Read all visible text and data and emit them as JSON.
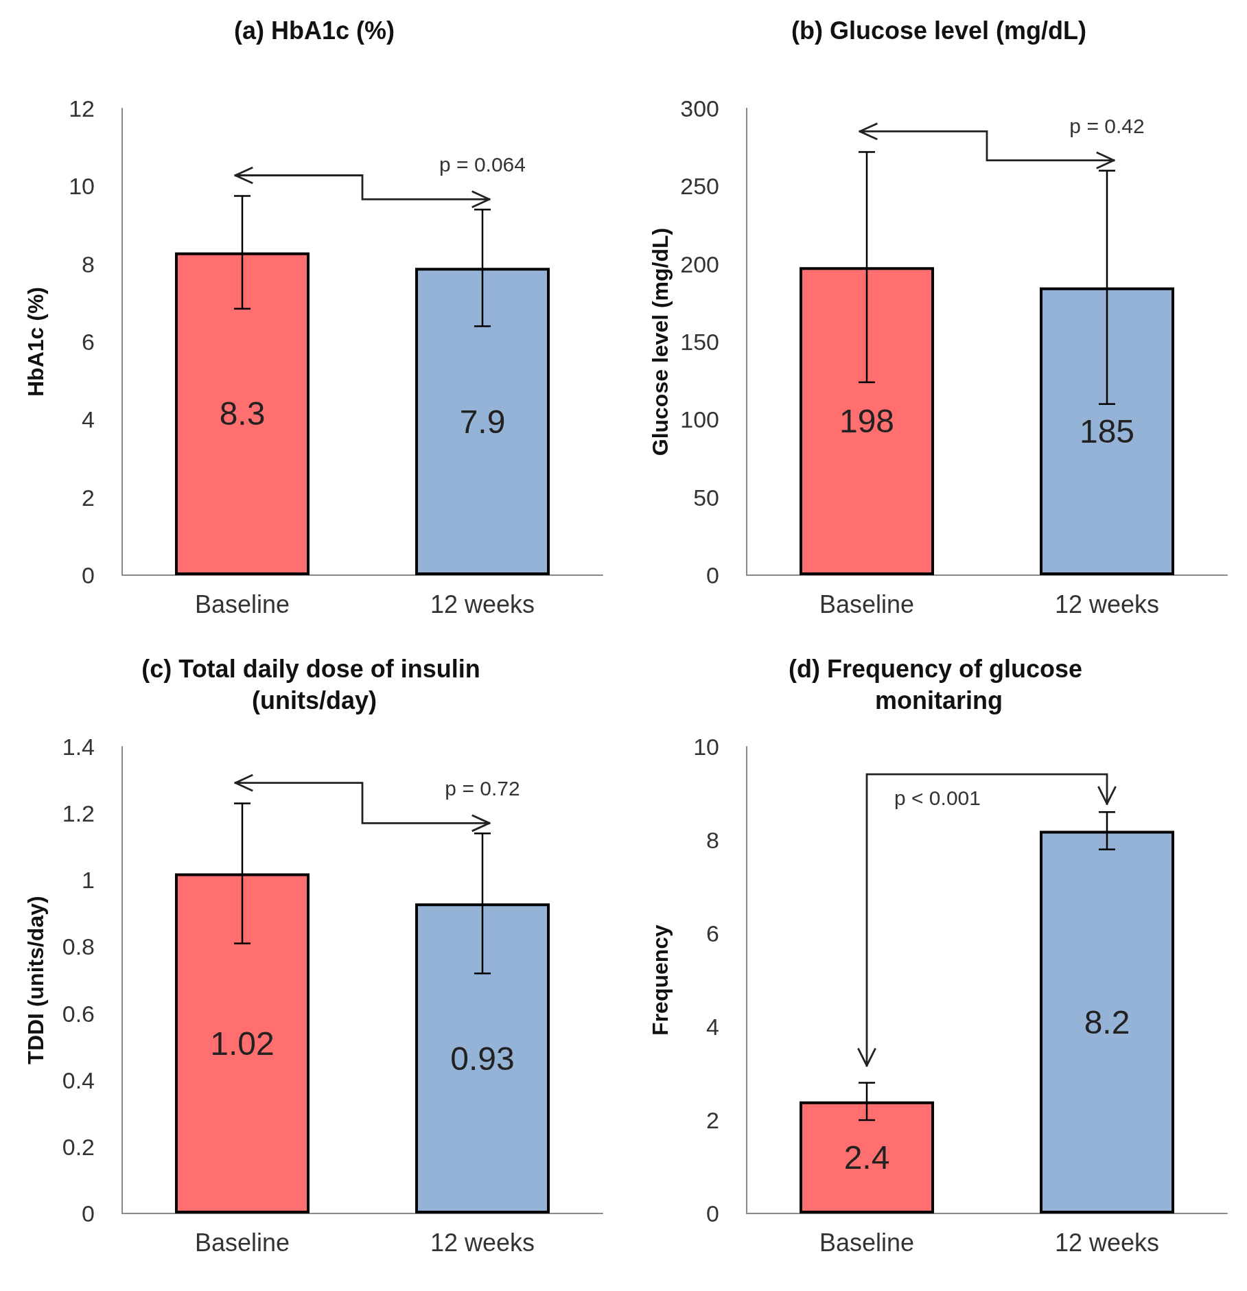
{
  "chart_data": [
    {
      "type": "bar",
      "title": "(a) HbA1c (%)",
      "ylabel": "HbA1c (%)",
      "categories": [
        "Baseline",
        "12 weeks"
      ],
      "values": [
        8.3,
        7.9
      ],
      "colors": [
        "#ff6f6f",
        "#95b3d7"
      ],
      "errors": [
        1.45,
        1.5
      ],
      "ylim": [
        0,
        12
      ],
      "yticks": [
        0,
        2,
        4,
        6,
        8,
        10,
        12
      ],
      "data_labels": true,
      "grid": false,
      "annotations": [
        "p = 0.064"
      ]
    },
    {
      "type": "bar",
      "title": "(b) Glucose level (mg/dL)",
      "ylabel": "Glucose level (mg/dL)",
      "categories": [
        "Baseline",
        "12 weeks"
      ],
      "values": [
        198,
        185
      ],
      "colors": [
        "#ff6f6f",
        "#95b3d7"
      ],
      "errors": [
        74,
        75
      ],
      "ylim": [
        0,
        300
      ],
      "yticks": [
        0,
        50,
        100,
        150,
        200,
        250,
        300
      ],
      "data_labels": true,
      "grid": false,
      "annotations": [
        "p = 0.42"
      ]
    },
    {
      "type": "bar",
      "title": "(c) Total daily dose of insulin (units/day)",
      "ylabel": "TDDI (units/day)",
      "categories": [
        "Baseline",
        "12 weeks"
      ],
      "values": [
        1.02,
        0.93
      ],
      "colors": [
        "#ff6f6f",
        "#95b3d7"
      ],
      "errors": [
        0.21,
        0.21
      ],
      "ylim": [
        0,
        1.4
      ],
      "yticks": [
        0,
        0.2,
        0.4,
        0.6,
        0.8,
        1,
        1.2,
        1.4
      ],
      "data_labels": true,
      "grid": false,
      "annotations": [
        "p = 0.72"
      ]
    },
    {
      "type": "bar",
      "title": "(d) Frequency of glucose monitaring",
      "ylabel": "Frequency",
      "categories": [
        "Baseline",
        "12 weeks"
      ],
      "values": [
        2.4,
        8.2
      ],
      "colors": [
        "#ff6f6f",
        "#95b3d7"
      ],
      "errors": [
        0.4,
        0.4
      ],
      "ylim": [
        0,
        10
      ],
      "yticks": [
        0,
        2,
        4,
        6,
        8,
        10
      ],
      "data_labels": true,
      "grid": false,
      "annotations": [
        "p < 0.001"
      ]
    }
  ]
}
